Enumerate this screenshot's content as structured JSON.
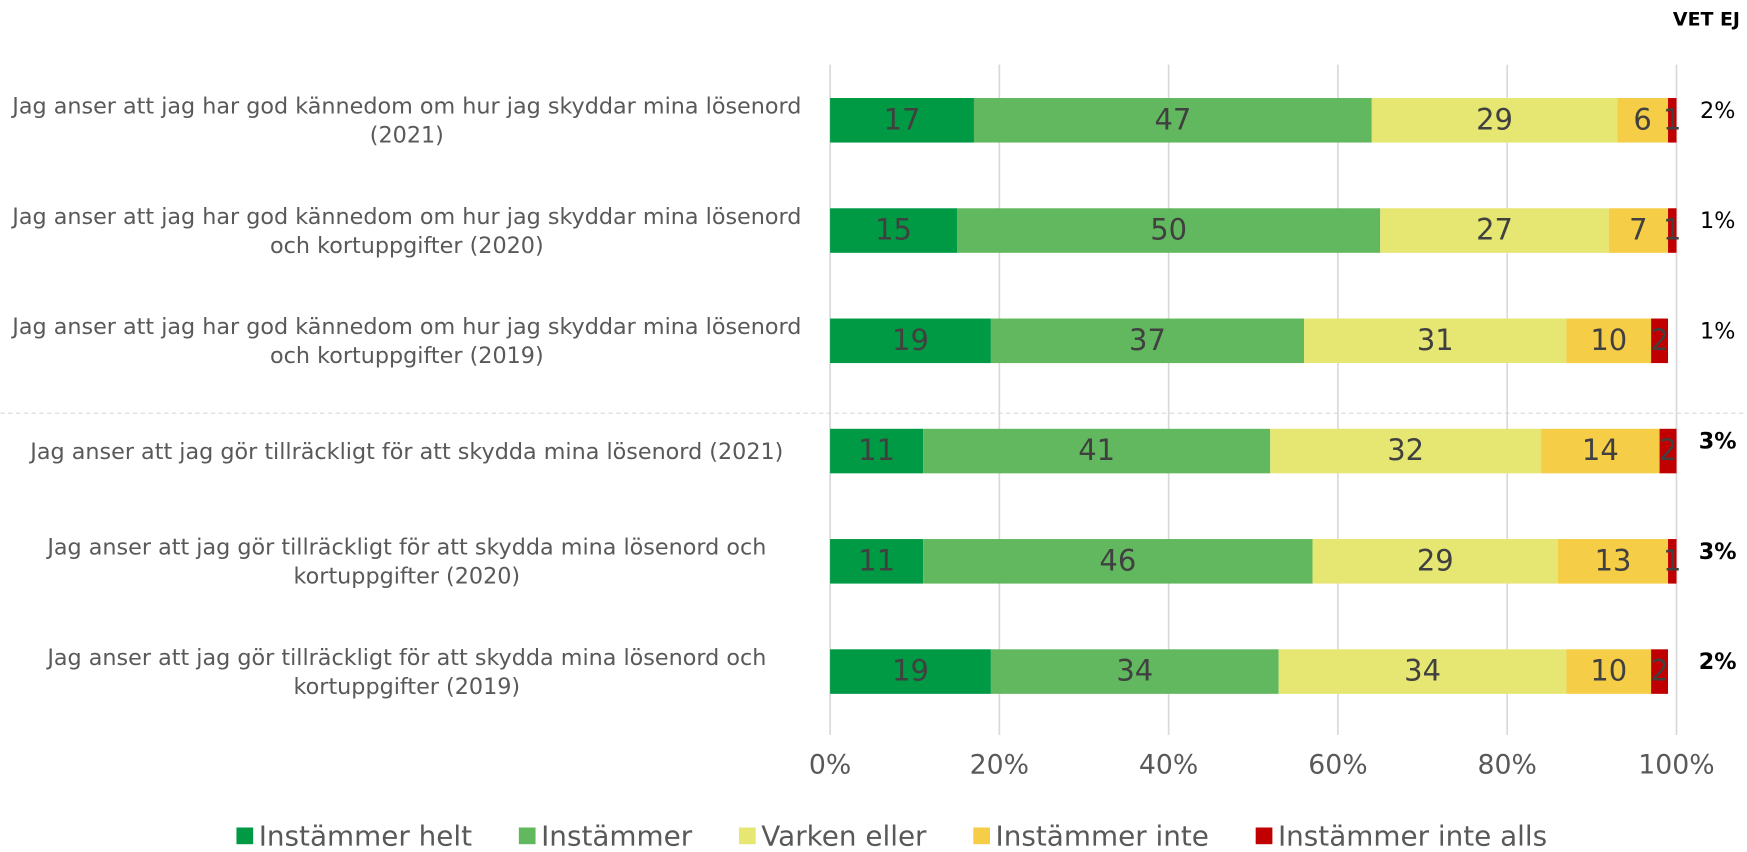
{
  "chart_data": {
    "type": "stacked_barh",
    "categories": [
      "Jag anser att jag har god kännedom om hur jag skyddar mina lösenord (2021)",
      "Jag anser att jag har god kännedom om hur jag skyddar mina lösenord och kortuppgifter (2020)",
      "Jag anser att jag har god kännedom om hur jag skyddar mina lösenord och kortuppgifter (2019)",
      "Jag anser att jag gör tillräckligt för att skydda mina lösenord (2021)",
      "Jag anser att jag gör tillräckligt för att skydda mina lösenord och kortuppgifter (2020)",
      "Jag anser att jag gör tillräckligt för att skydda mina lösenord och kortuppgifter (2019)"
    ],
    "series": [
      {
        "name": "Instämmer helt",
        "color": "#009a44",
        "values": [
          17,
          15,
          19,
          11,
          11,
          19
        ]
      },
      {
        "name": "Instämmer",
        "color": "#62b85f",
        "values": [
          47,
          50,
          37,
          41,
          46,
          34
        ]
      },
      {
        "name": "Varken eller",
        "color": "#e6e672",
        "values": [
          29,
          27,
          31,
          32,
          29,
          34
        ]
      },
      {
        "name": "Instämmer inte",
        "color": "#f5cd47",
        "values": [
          6,
          7,
          10,
          14,
          13,
          10
        ]
      },
      {
        "name": "Instämmer inte alls",
        "color": "#c00000",
        "values": [
          1,
          1,
          2,
          2,
          1,
          2
        ]
      }
    ],
    "xlim": [
      0,
      100
    ],
    "xticks": [
      {
        "value": 0,
        "label": "0%"
      },
      {
        "value": 20,
        "label": "20%"
      },
      {
        "value": 40,
        "label": "40%"
      },
      {
        "value": 60,
        "label": "60%"
      },
      {
        "value": 80,
        "label": "80%"
      },
      {
        "value": 100,
        "label": "100%"
      }
    ],
    "grid": true,
    "vet_ej": {
      "title": "VET EJ",
      "values": [
        2,
        1,
        1,
        3,
        3,
        2
      ],
      "value_labels": [
        "2%",
        "1%",
        "1%",
        "3%",
        "3%",
        "2%"
      ]
    }
  }
}
